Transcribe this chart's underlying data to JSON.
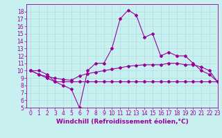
{
  "line1_x": [
    0,
    1,
    2,
    3,
    4,
    5,
    6,
    7,
    8,
    9,
    10,
    11,
    12,
    13,
    14,
    15,
    16,
    17,
    18,
    19,
    20,
    21,
    22,
    23
  ],
  "line1_y": [
    10,
    10,
    9.5,
    8.5,
    8,
    7.5,
    5,
    10,
    11,
    11,
    13,
    17,
    18.2,
    17.5,
    14.5,
    15,
    12,
    12.5,
    12,
    12,
    11,
    10,
    9.5,
    8.5
  ],
  "line2_x": [
    0,
    1,
    2,
    3,
    4,
    5,
    6,
    7,
    8,
    9,
    10,
    11,
    12,
    13,
    14,
    15,
    16,
    17,
    18,
    19,
    20,
    21,
    22,
    23
  ],
  "line2_y": [
    10,
    9.5,
    9.2,
    9.0,
    8.8,
    8.7,
    9.3,
    9.6,
    9.8,
    10.0,
    10.2,
    10.4,
    10.6,
    10.7,
    10.8,
    10.8,
    10.8,
    11.0,
    11.0,
    10.8,
    10.8,
    10.5,
    10.0,
    8.5
  ],
  "line3_x": [
    0,
    1,
    2,
    3,
    4,
    5,
    6,
    7,
    8,
    9,
    10,
    11,
    12,
    13,
    14,
    15,
    16,
    17,
    18,
    19,
    20,
    21,
    22,
    23
  ],
  "line3_y": [
    10,
    9.5,
    9.0,
    8.5,
    8.5,
    8.5,
    8.5,
    8.5,
    8.5,
    8.5,
    8.5,
    8.5,
    8.5,
    8.5,
    8.5,
    8.5,
    8.5,
    8.5,
    8.5,
    8.5,
    8.5,
    8.5,
    8.5,
    8.5
  ],
  "line_color": "#990099",
  "bg_color": "#c8f0f0",
  "grid_color": "#b0dede",
  "xlabel": "Windchill (Refroidissement éolien,°C)",
  "xlim": [
    -0.5,
    23
  ],
  "ylim": [
    5,
    19
  ],
  "xticks": [
    0,
    1,
    2,
    3,
    4,
    5,
    6,
    7,
    8,
    9,
    10,
    11,
    12,
    13,
    14,
    15,
    16,
    17,
    18,
    19,
    20,
    21,
    22,
    23
  ],
  "yticks": [
    5,
    6,
    7,
    8,
    9,
    10,
    11,
    12,
    13,
    14,
    15,
    16,
    17,
    18
  ],
  "marker": "D",
  "markersize": 2.0,
  "linewidth": 0.8,
  "xlabel_fontsize": 6.5,
  "tick_fontsize": 5.5
}
